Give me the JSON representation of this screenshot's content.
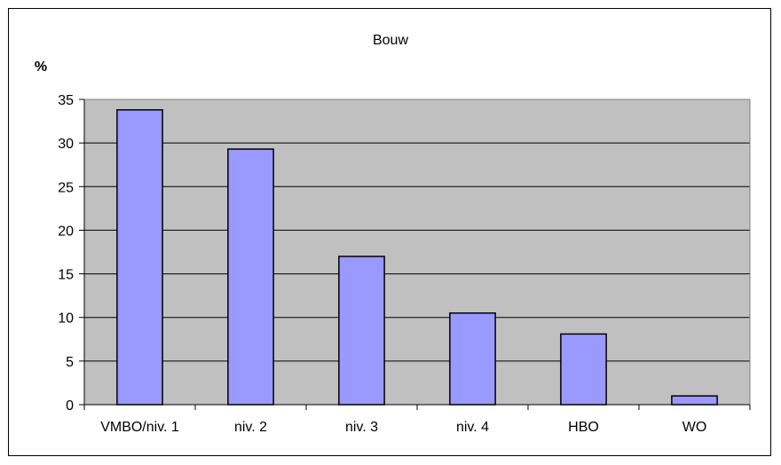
{
  "chart_data": {
    "type": "bar",
    "title": "Bouw",
    "xlabel": "",
    "ylabel": "%",
    "categories": [
      "VMBO/niv. 1",
      "niv. 2",
      "niv. 3",
      "niv. 4",
      "HBO",
      "WO"
    ],
    "values": [
      33.8,
      29.3,
      17.0,
      10.5,
      8.1,
      1.0
    ],
    "ylim": [
      0,
      35
    ],
    "yticks": [
      0,
      5,
      10,
      15,
      20,
      25,
      30,
      35
    ],
    "grid": true,
    "legend": "none",
    "colors": {
      "bar_fill": "#9999ff",
      "plot_background": "#c0c0c0",
      "gridline": "#000000",
      "bar_stroke": "#000000"
    }
  }
}
